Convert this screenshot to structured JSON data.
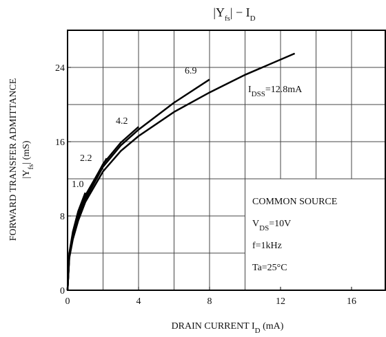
{
  "chart_data": {
    "type": "line",
    "title_parts": [
      "|Y",
      "fs",
      "|  −  I",
      "D"
    ],
    "y_label": "FORWARD TRANSFER ADMITTANCE",
    "y_label2_parts": [
      "|Y",
      "fs",
      "|  (mS)"
    ],
    "x_label_parts": [
      "DRAIN CURRENT   I",
      "D",
      "   (mA)"
    ],
    "xlim": [
      0,
      18
    ],
    "ylim": [
      0,
      28
    ],
    "xticks": [
      0,
      4,
      8,
      12,
      16
    ],
    "yticks": [
      0,
      8,
      16,
      24
    ],
    "xgrid": [
      2,
      4,
      6,
      8,
      10,
      12,
      14,
      16
    ],
    "ygrid": [
      4,
      8,
      12,
      16,
      20,
      24
    ],
    "grid": true,
    "color": "#000000",
    "series": [
      {
        "name": "1.0",
        "x": [
          0,
          0.1,
          0.3,
          0.6,
          1
        ],
        "values": [
          0,
          4,
          6.3,
          8.5,
          10.5
        ]
      },
      {
        "name": "2.2",
        "x": [
          0,
          0.1,
          0.3,
          0.6,
          1,
          2.2
        ],
        "values": [
          0,
          3.9,
          6.1,
          8.2,
          10.2,
          14.2
        ]
      },
      {
        "name": "4.2",
        "x": [
          0,
          0.1,
          0.3,
          0.6,
          1,
          2,
          3,
          4
        ],
        "values": [
          0,
          3.8,
          6,
          8,
          10,
          13.6,
          15.9,
          17.6
        ]
      },
      {
        "name": "6.9",
        "x": [
          0,
          0.1,
          0.3,
          0.6,
          1,
          2,
          3,
          4,
          6,
          8
        ],
        "values": [
          0,
          3.7,
          5.8,
          7.8,
          9.8,
          13.3,
          15.6,
          17.3,
          20.2,
          22.7
        ]
      },
      {
        "label_parts": [
          "I",
          "DSS",
          "=12.8mA"
        ],
        "x": [
          0,
          0.1,
          0.3,
          0.6,
          1,
          2,
          3,
          4,
          6,
          8,
          10,
          12.8
        ],
        "values": [
          0,
          3.5,
          5.5,
          7.5,
          9.5,
          12.8,
          15,
          16.6,
          19.2,
          21.3,
          23.2,
          25.5
        ]
      }
    ],
    "conditions": [
      {
        "parts": [
          "COMMON SOURCE"
        ]
      },
      {
        "parts": [
          "V",
          "DS",
          "=10V"
        ]
      },
      {
        "parts": [
          "f=1kHz"
        ]
      },
      {
        "parts": [
          "Ta=25°C"
        ]
      }
    ]
  }
}
